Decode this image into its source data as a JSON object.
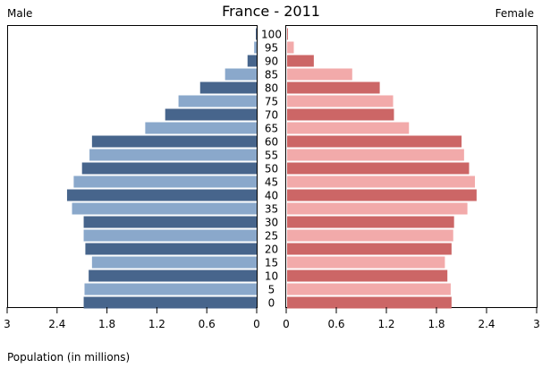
{
  "chart_data": {
    "type": "bar",
    "title": "France - 2011",
    "left_label": "Male",
    "right_label": "Female",
    "xlabel": "Population (in millions)",
    "xlim": [
      0,
      3
    ],
    "x_ticks": [
      "3",
      "2.4",
      "1.8",
      "1.2",
      "0.6",
      "0",
      "0",
      "0.6",
      "1.2",
      "1.8",
      "2.4",
      "3"
    ],
    "categories": [
      "0",
      "5",
      "10",
      "15",
      "20",
      "25",
      "30",
      "35",
      "40",
      "45",
      "50",
      "55",
      "60",
      "65",
      "70",
      "75",
      "80",
      "85",
      "90",
      "95",
      "100"
    ],
    "series": [
      {
        "side": "male",
        "values": [
          2.08,
          2.07,
          2.02,
          1.98,
          2.06,
          2.08,
          2.08,
          2.22,
          2.28,
          2.2,
          2.1,
          2.01,
          1.98,
          1.34,
          1.1,
          0.94,
          0.68,
          0.38,
          0.11,
          0.03,
          0.01
        ],
        "colors": [
          "#47658c",
          "#8aa8cb"
        ]
      },
      {
        "side": "female",
        "values": [
          1.97,
          1.96,
          1.92,
          1.89,
          1.97,
          1.99,
          2.0,
          2.16,
          2.27,
          2.25,
          2.18,
          2.12,
          2.09,
          1.46,
          1.28,
          1.27,
          1.11,
          0.78,
          0.32,
          0.08,
          0.01
        ],
        "colors": [
          "#cc6666",
          "#f2aaaa"
        ]
      }
    ]
  }
}
